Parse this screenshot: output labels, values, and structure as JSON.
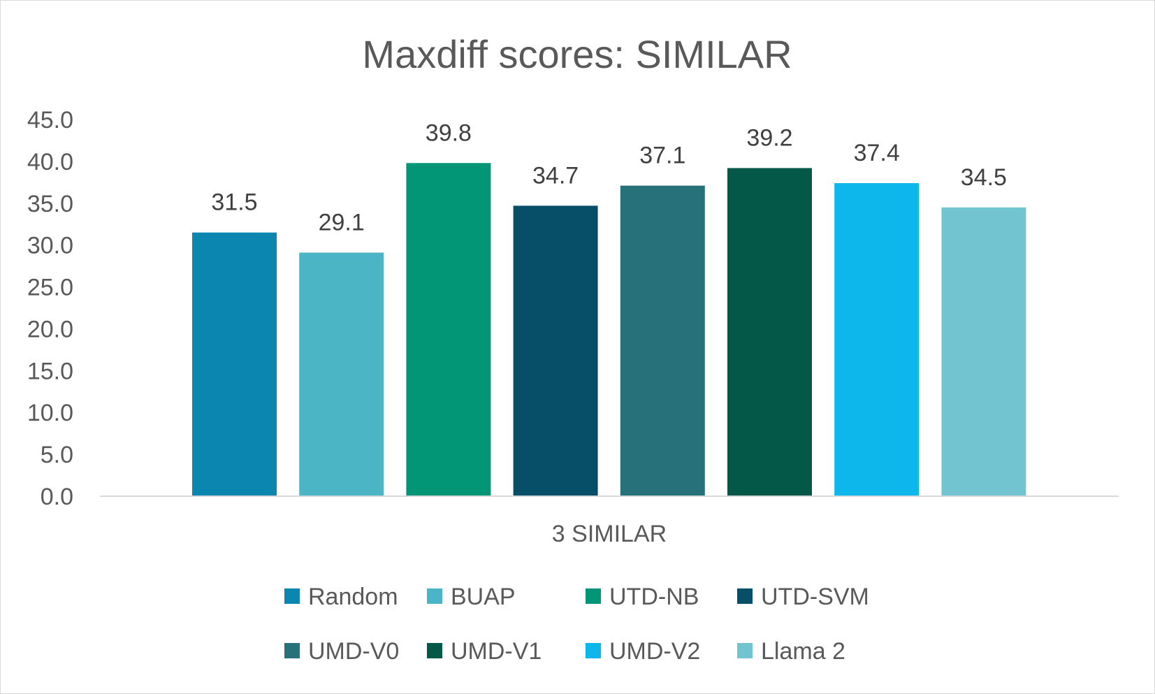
{
  "chart_data": {
    "type": "bar",
    "title": "Maxdiff scores: SIMILAR",
    "categories": [
      "3 SIMILAR"
    ],
    "series": [
      {
        "name": "Random",
        "values": [
          31.5
        ],
        "color": "#0A86B0"
      },
      {
        "name": "BUAP",
        "values": [
          29.1
        ],
        "color": "#4BB5C6"
      },
      {
        "name": "UTD-NB",
        "values": [
          39.8
        ],
        "color": "#039676"
      },
      {
        "name": "UTD-SVM",
        "values": [
          34.7
        ],
        "color": "#074F69"
      },
      {
        "name": "UMD-V0",
        "values": [
          37.1
        ],
        "color": "#27727A"
      },
      {
        "name": "UMD-V1",
        "values": [
          39.2
        ],
        "color": "#035848"
      },
      {
        "name": "UMD-V2",
        "values": [
          37.4
        ],
        "color": "#0DB7EB"
      },
      {
        "name": "Llama 2",
        "values": [
          34.5
        ],
        "color": "#72C5D0"
      }
    ],
    "yticks": [
      "0.0",
      "5.0",
      "10.0",
      "15.0",
      "20.0",
      "25.0",
      "30.0",
      "35.0",
      "40.0",
      "45.0"
    ],
    "ylim": [
      0,
      45
    ],
    "xlabel": "",
    "ylabel": "",
    "grid": false,
    "legend_position": "bottom",
    "data_labels": [
      "31.5",
      "29.1",
      "39.8",
      "34.7",
      "37.1",
      "39.2",
      "37.4",
      "34.5"
    ]
  }
}
